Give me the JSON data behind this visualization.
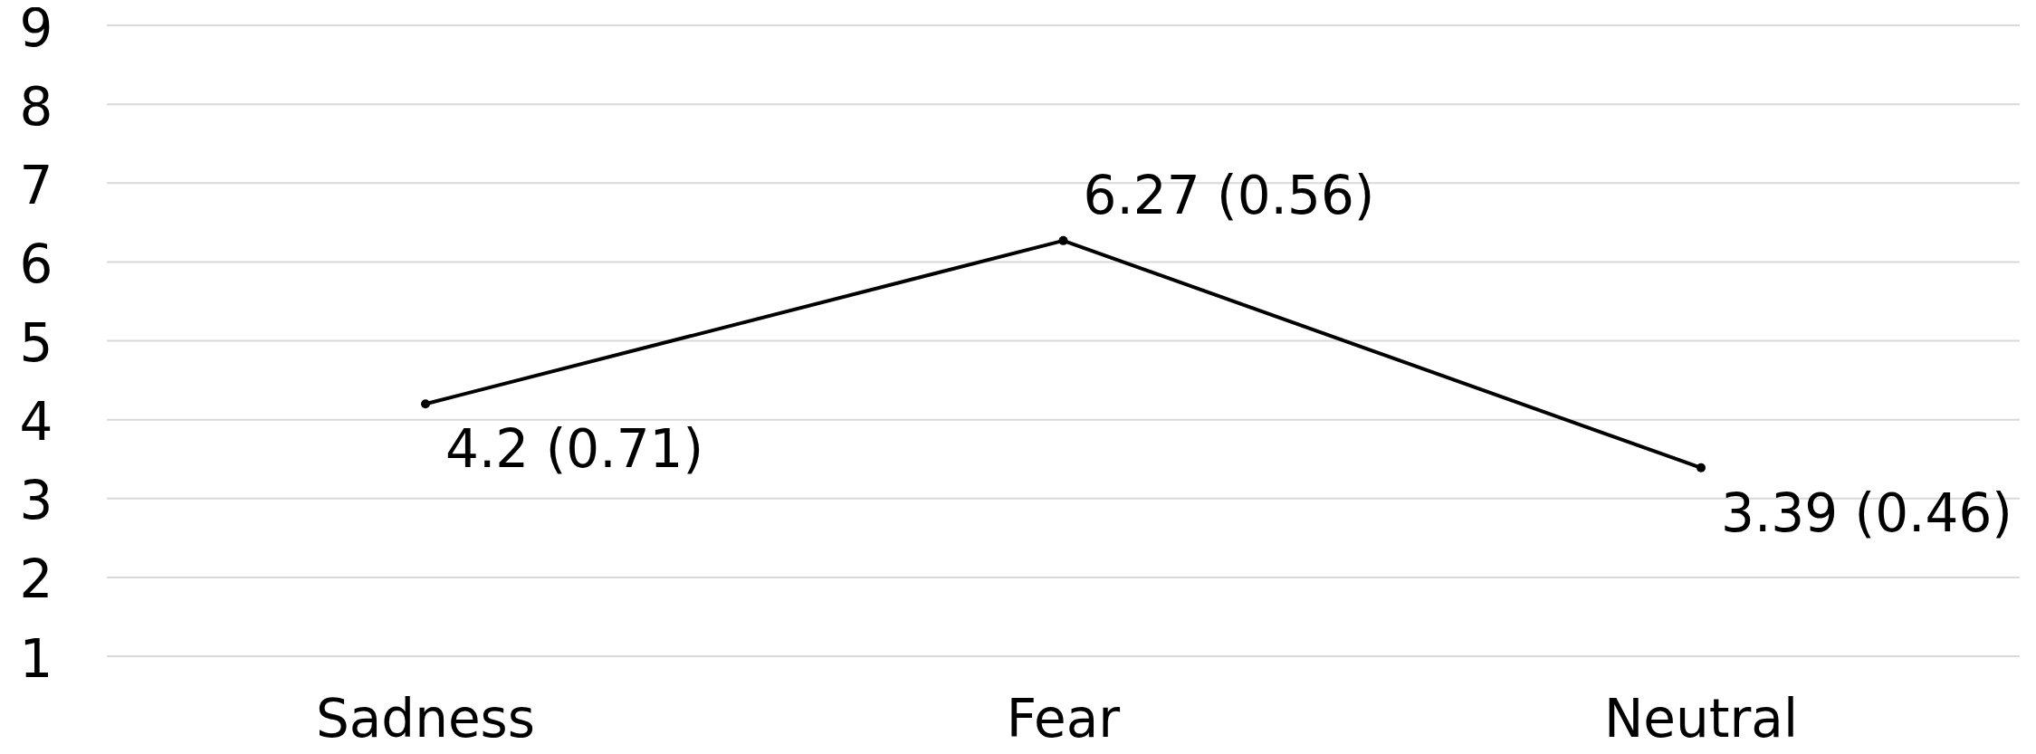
{
  "chart_data": {
    "type": "line",
    "categories": [
      "Sadness",
      "Fear",
      "Neutral"
    ],
    "series": [
      {
        "color": "#000000",
        "values": [
          4.2,
          6.27,
          3.39
        ],
        "value_labels": [
          "4.2 (0.71)",
          "6.27 (0.56)",
          "3.39 (0.46)"
        ]
      }
    ],
    "ylim": [
      1,
      9
    ],
    "yticks": [
      1,
      2,
      3,
      4,
      5,
      6,
      7,
      8,
      9
    ],
    "grid": "y",
    "marker": "circle",
    "line_style": "solid",
    "legend": false
  }
}
